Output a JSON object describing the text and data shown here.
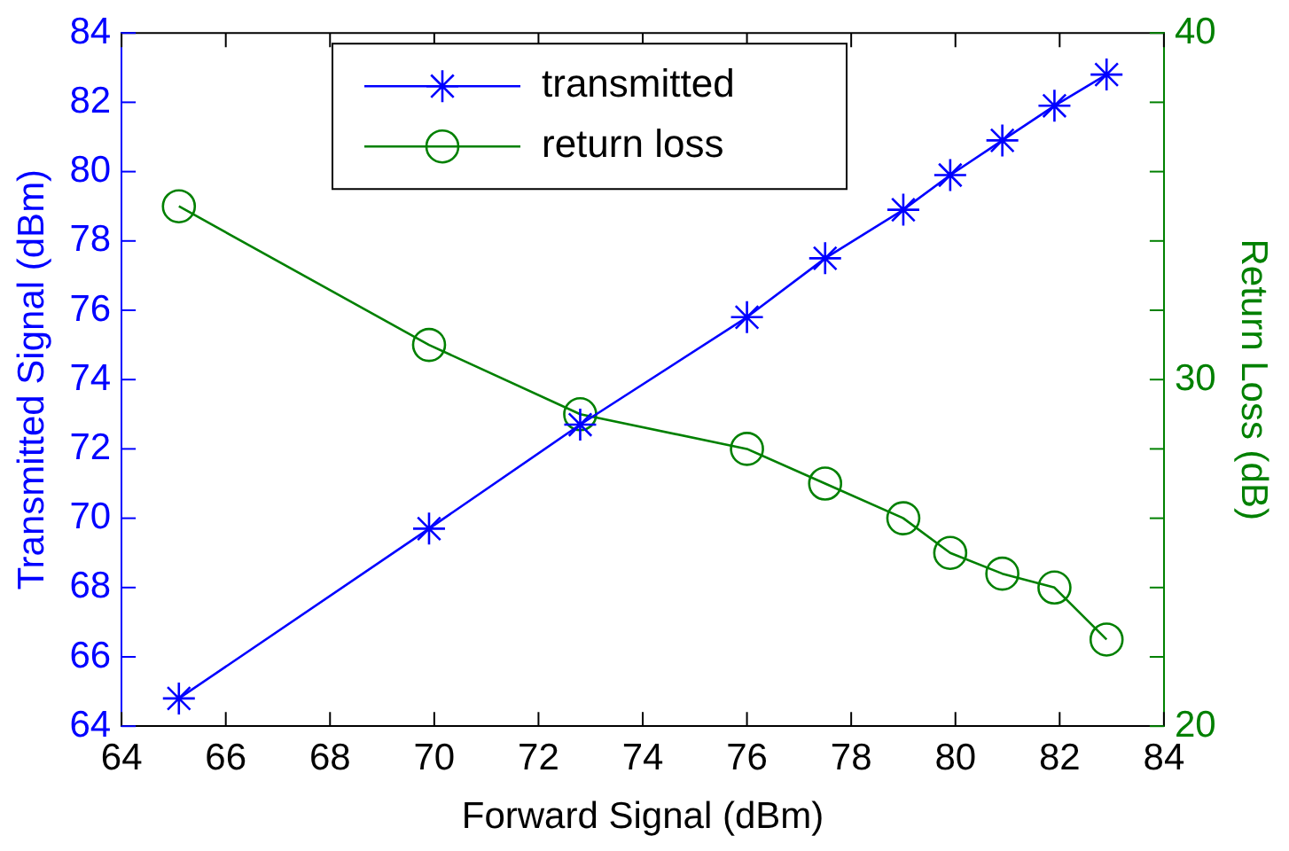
{
  "chart_data": {
    "type": "line",
    "xlabel": "Forward Signal (dBm)",
    "ylabel": "Transmitted Signal (dBm)",
    "y2label": "Return Loss (dB)",
    "x": [
      65.1,
      69.9,
      72.8,
      76,
      77.5,
      79,
      79.9,
      80.9,
      81.9,
      82.9
    ],
    "series": [
      {
        "name": "transmitted",
        "color": "#0000ff",
        "marker": "cross",
        "values": [
          64.8,
          69.7,
          72.7,
          75.8,
          77.5,
          78.9,
          79.9,
          80.9,
          81.9,
          82.8
        ]
      },
      {
        "name": "return loss",
        "color": "#008000",
        "marker": "circle",
        "axis": "y2",
        "values": [
          35,
          31,
          29,
          28,
          27,
          26,
          25,
          24.4,
          24,
          22.5
        ]
      }
    ],
    "xlim": [
      64,
      84
    ],
    "xticks": [
      64,
      66,
      68,
      70,
      72,
      74,
      76,
      78,
      80,
      82,
      84
    ],
    "ylim": [
      64,
      84
    ],
    "yticks": [
      64,
      66,
      68,
      70,
      72,
      74,
      76,
      78,
      80,
      82,
      84
    ],
    "y2lim": [
      20,
      40
    ],
    "y2ticks": [
      20,
      {
        "value": 22,
        "label": null
      },
      {
        "value": 24,
        "label": null
      },
      {
        "value": 26,
        "label": null
      },
      {
        "value": 28,
        "label": null
      },
      30,
      {
        "value": 32,
        "label": null
      },
      {
        "value": 34,
        "label": null
      },
      {
        "value": 36,
        "label": null
      },
      {
        "value": 38,
        "label": null
      },
      40
    ],
    "legend": "top",
    "line_style": "solid",
    "grid": false
  }
}
